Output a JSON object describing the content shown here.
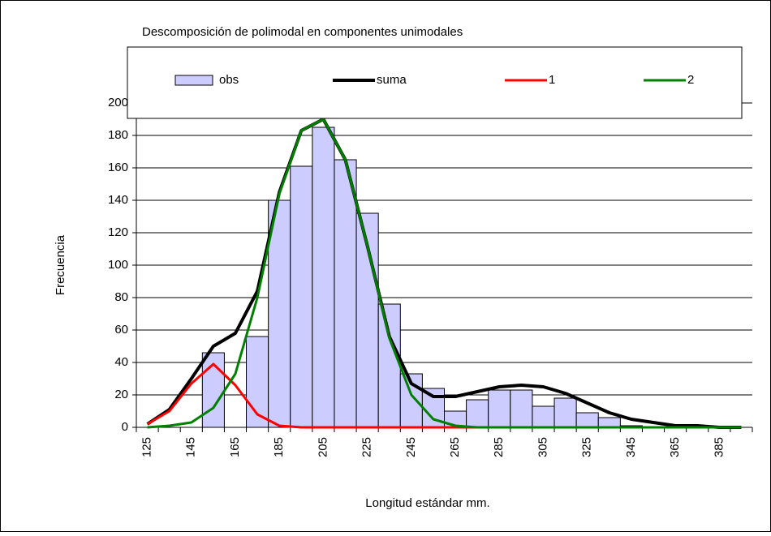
{
  "chart_data": {
    "type": "bar",
    "title": "Descomposición de polimodal en componentes unimodales",
    "x_label": "Longitud estándar mm.",
    "y_label": "Frecuencia",
    "categories": [
      "125",
      null,
      "145",
      null,
      "165",
      null,
      "185",
      null,
      "205",
      null,
      "225",
      null,
      "245",
      null,
      "265",
      null,
      "285",
      null,
      "305",
      null,
      "325",
      null,
      "345",
      null,
      "365",
      null,
      "385",
      null
    ],
    "series": [
      {
        "name": "obs",
        "type": "bar",
        "color": "#ccccff",
        "values": [
          0,
          0,
          0,
          46,
          0,
          56,
          140,
          161,
          185,
          165,
          132,
          76,
          33,
          24,
          10,
          17,
          23,
          23,
          13,
          18,
          9,
          6,
          1,
          0,
          0,
          0,
          0,
          0
        ]
      },
      {
        "name": "suma",
        "type": "line",
        "color": "#000000",
        "values": [
          2,
          11,
          30,
          50,
          58,
          84,
          145,
          183,
          190,
          165,
          112,
          56,
          27,
          19,
          19,
          22,
          25,
          26,
          25,
          21,
          15,
          9,
          5,
          3,
          1,
          1,
          0,
          0
        ]
      },
      {
        "name": "1",
        "type": "line",
        "color": "#ff0000",
        "values": [
          2,
          10,
          27,
          39,
          26,
          8,
          1,
          0,
          0,
          0,
          0,
          0,
          0,
          0,
          0,
          0,
          0,
          0,
          0,
          0,
          0,
          0,
          0,
          0,
          0,
          0,
          0,
          0
        ]
      },
      {
        "name": "2",
        "type": "line",
        "color": "#008000",
        "values": [
          0,
          1,
          3,
          12,
          33,
          80,
          144,
          183,
          190,
          165,
          112,
          55,
          20,
          5,
          1,
          0,
          0,
          0,
          0,
          0,
          0,
          0,
          0,
          0,
          0,
          0,
          0,
          0
        ]
      }
    ],
    "ylim": [
      0,
      200
    ],
    "yticks": [
      0,
      20,
      40,
      60,
      80,
      100,
      120,
      140,
      160,
      180,
      200
    ],
    "grid": true,
    "legend": "top"
  }
}
